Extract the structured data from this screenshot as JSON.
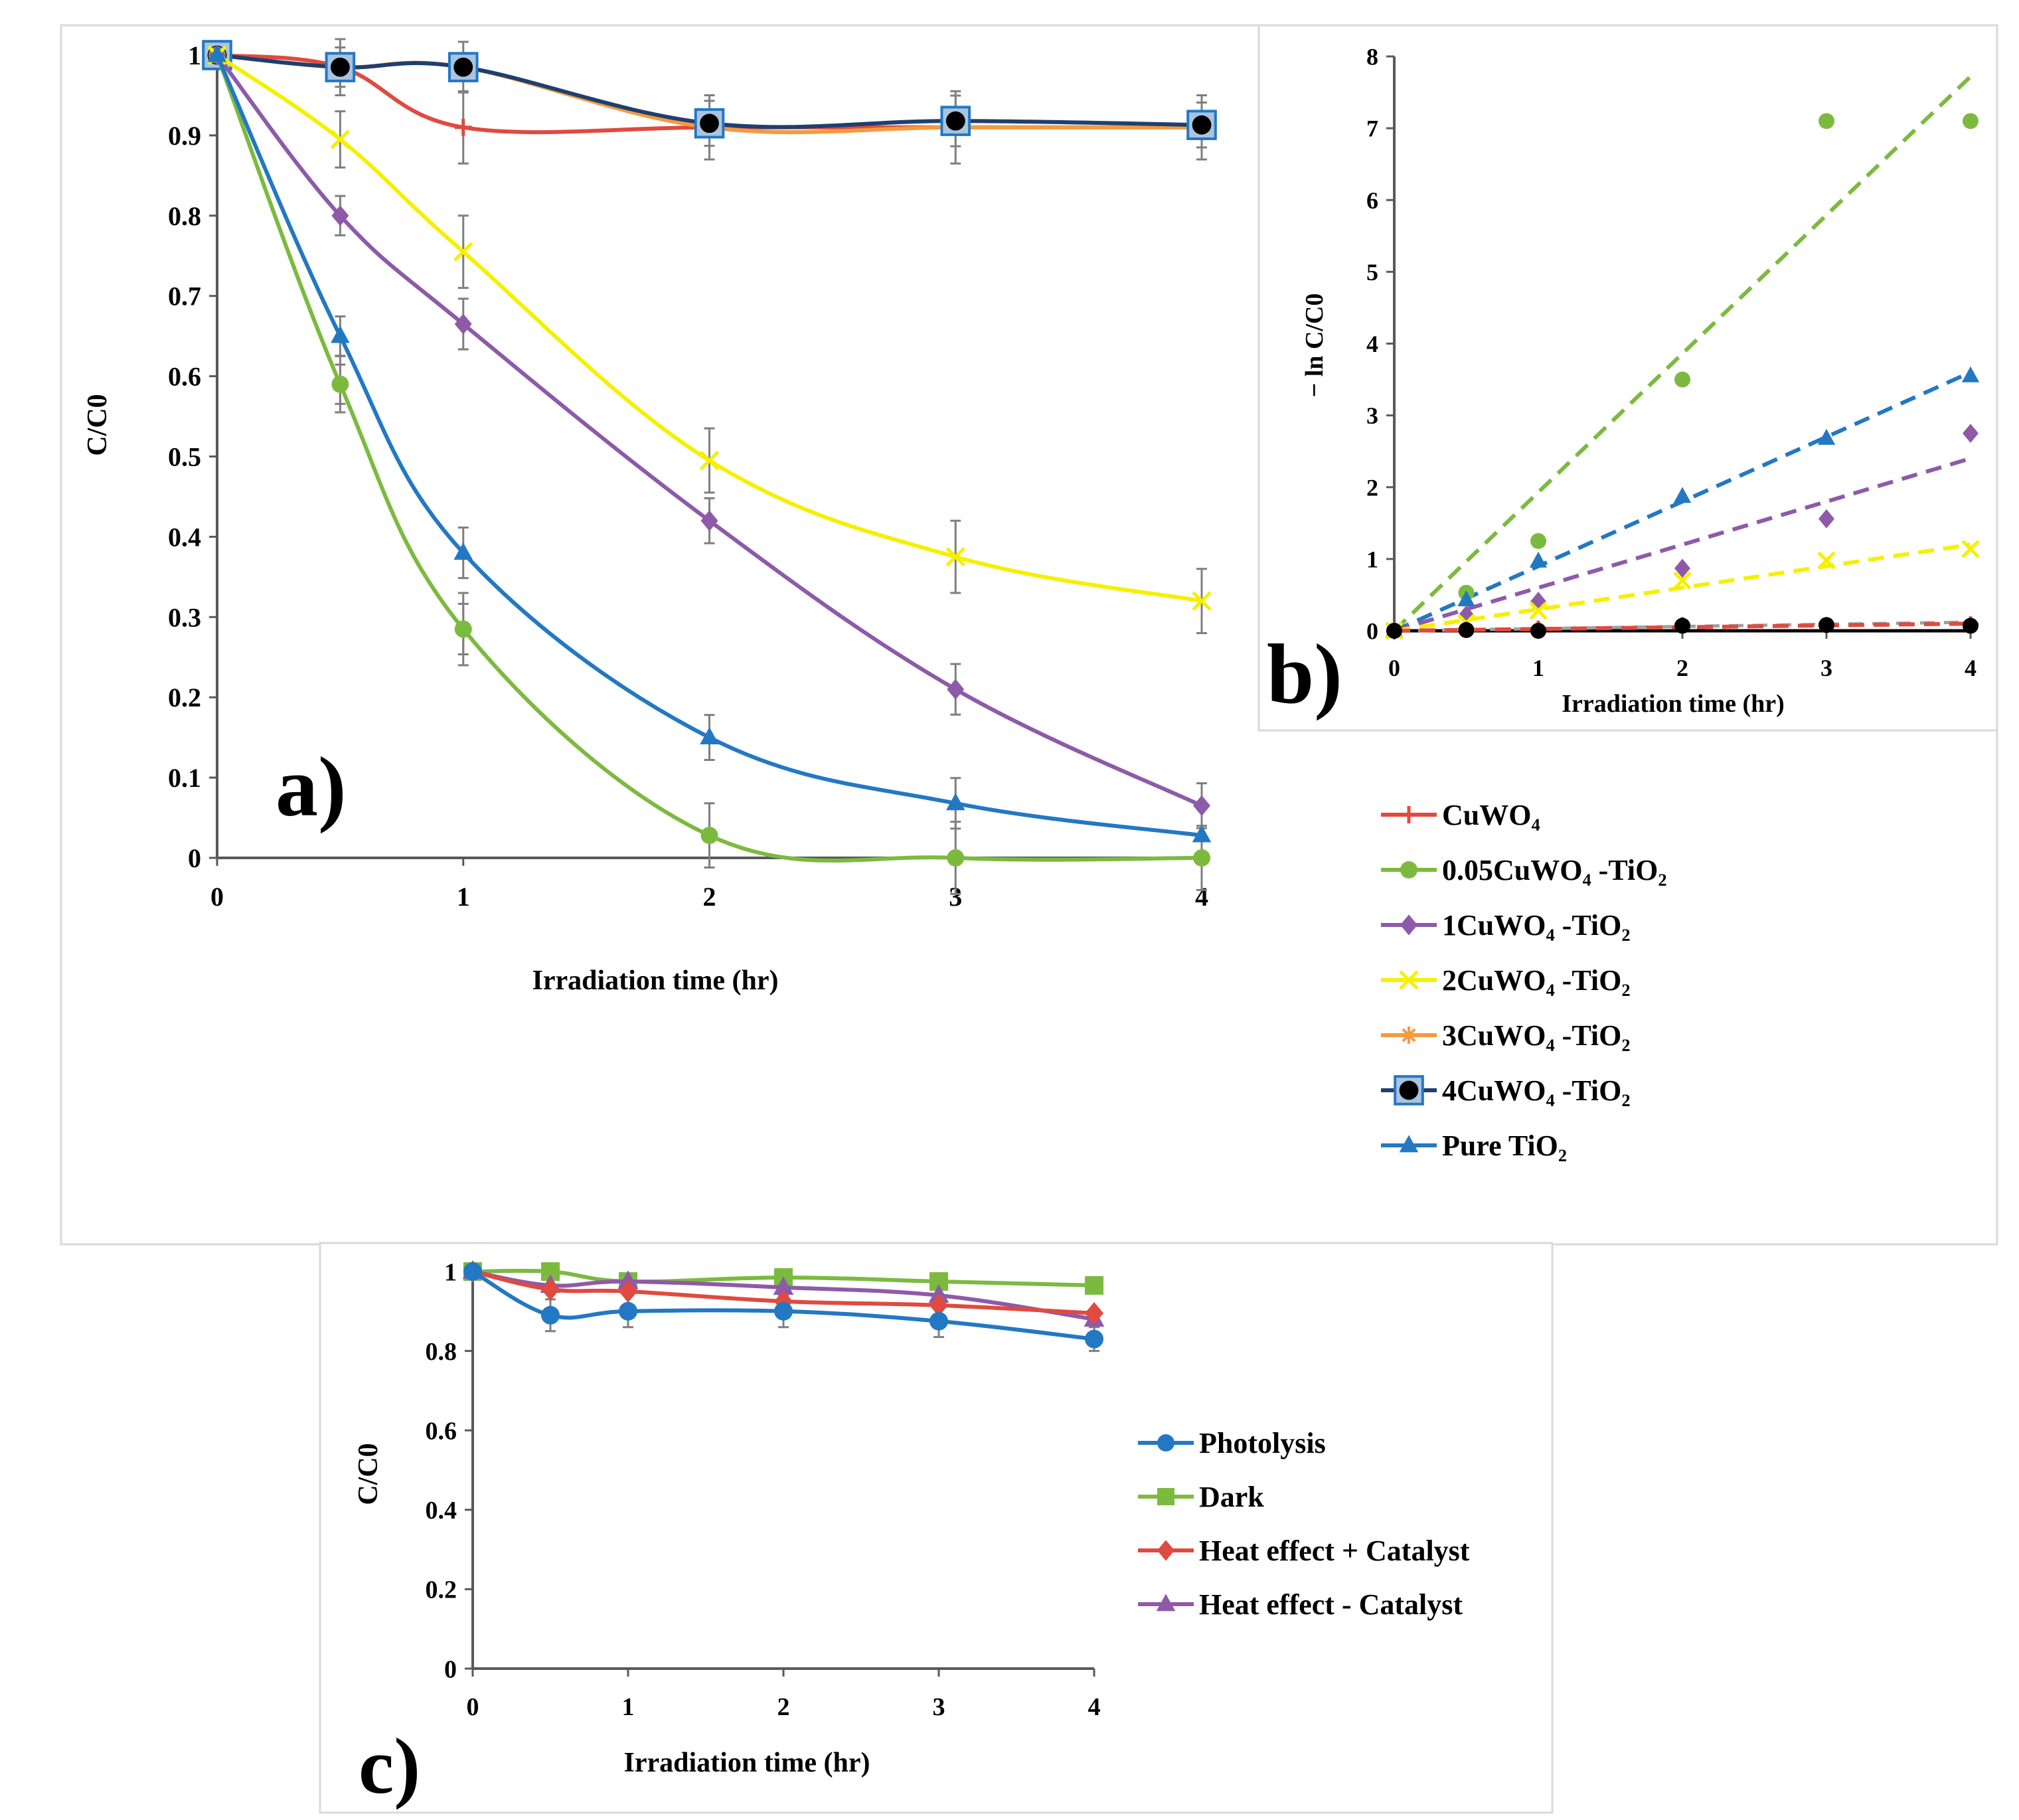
{
  "chart_data": [
    {
      "panel": "a)",
      "type": "line",
      "xlabel": "Irradiation  time (hr)",
      "ylabel": "C/C0",
      "xlim": [
        0,
        4
      ],
      "ylim": [
        0,
        1
      ],
      "xticks": [
        "0",
        "1",
        "2",
        "3",
        "4"
      ],
      "yticks": [
        "0",
        "0.1",
        "0.2",
        "0.3",
        "0.4",
        "0.5",
        "0.6",
        "0.7",
        "0.8",
        "0.9",
        "1"
      ],
      "x": [
        0,
        0.5,
        1,
        2,
        3,
        4
      ],
      "series": [
        {
          "name": "CuWO₄",
          "color": "#e04a3f",
          "marker": "plus",
          "values": [
            1.0,
            0.985,
            0.91,
            0.91,
            0.91,
            0.91
          ]
        },
        {
          "name": "0.05CuWO₄ -TiO₂",
          "color": "#7cba3f",
          "marker": "circle",
          "values": [
            1.0,
            0.59,
            0.285,
            0.028,
            0.0,
            0.0
          ]
        },
        {
          "name": "1CuWO₄ -TiO₂",
          "color": "#8e5aa8",
          "marker": "diamond",
          "values": [
            1.0,
            0.8,
            0.665,
            0.42,
            0.21,
            0.065
          ]
        },
        {
          "name": "2CuWO₄ -TiO₂",
          "color": "#f5f000",
          "marker": "x",
          "values": [
            1.0,
            0.895,
            0.755,
            0.495,
            0.375,
            0.32
          ]
        },
        {
          "name": "3CuWO₄ -TiO₂",
          "color": "#f59a3e",
          "marker": "star",
          "values": [
            1.0,
            0.985,
            0.985,
            0.91,
            0.91,
            0.91
          ]
        },
        {
          "name": "4CuWO₄ -TiO₂",
          "color": "#1f3f6e",
          "marker": "square-dot",
          "values": [
            1.0,
            0.985,
            0.985,
            0.915,
            0.918,
            0.913
          ]
        },
        {
          "name": "Pure TiO₂",
          "color": "#2378c3",
          "marker": "triangle",
          "values": [
            1.0,
            0.65,
            0.38,
            0.15,
            0.068,
            0.028
          ]
        }
      ],
      "error_bars": [
        0.01,
        0.035,
        0.045,
        0.04,
        0.045,
        0.04
      ]
    },
    {
      "panel": "b)",
      "type": "scatter",
      "xlabel": "Irradiation time (hr)",
      "ylabel": "− ln C/C0",
      "xlim": [
        0,
        4
      ],
      "ylim": [
        0,
        8
      ],
      "xticks": [
        "0",
        "1",
        "2",
        "3",
        "4"
      ],
      "yticks": [
        "0",
        "1",
        "2",
        "3",
        "4",
        "5",
        "6",
        "7",
        "8"
      ],
      "x": [
        0,
        0.5,
        1,
        2,
        3,
        4
      ],
      "series": [
        {
          "name": "0.05CuWO₄ -TiO₂",
          "color": "#7cba3f",
          "marker": "circle",
          "values": [
            0.0,
            0.53,
            1.25,
            3.5,
            7.1,
            7.1
          ],
          "fit_slope": 1.93
        },
        {
          "name": "Pure TiO₂",
          "color": "#2378c3",
          "marker": "triangle",
          "values": [
            0.0,
            0.43,
            0.97,
            1.87,
            2.68,
            3.55
          ],
          "fit_slope": 0.9
        },
        {
          "name": "1CuWO₄ -TiO₂",
          "color": "#8e5aa8",
          "marker": "diamond",
          "values": [
            0.0,
            0.22,
            0.41,
            0.87,
            1.56,
            2.75
          ],
          "fit_slope": 0.6
        },
        {
          "name": "2CuWO₄ -TiO₂",
          "color": "#f5f000",
          "marker": "x",
          "values": [
            0.0,
            0.11,
            0.28,
            0.7,
            0.98,
            1.14
          ],
          "fit_slope": 0.3
        },
        {
          "name": "CuWO₄",
          "color": "#e04a3f",
          "marker": "plus",
          "values": [
            0.0,
            0.015,
            0.03,
            0.08,
            0.08,
            0.09
          ],
          "fit_slope": 0.025
        },
        {
          "name": "4CuWO₄ -TiO₂",
          "color": "#000000",
          "marker": "circle-black",
          "values": [
            0.0,
            0.01,
            0.0,
            0.07,
            0.08,
            0.07
          ],
          "fit_slope": 0.0
        }
      ]
    },
    {
      "panel": "c)",
      "type": "line",
      "xlabel": "Irradiation  time (hr)",
      "ylabel": "C/C0",
      "xlim": [
        0,
        4
      ],
      "ylim": [
        0,
        1
      ],
      "xticks": [
        "0",
        "1",
        "2",
        "3",
        "4"
      ],
      "yticks": [
        "0",
        "0.2",
        "0.4",
        "0.6",
        "0.8",
        "1"
      ],
      "x": [
        0,
        0.5,
        1,
        2,
        3,
        4
      ],
      "series": [
        {
          "name": "Photolysis",
          "color": "#2378c3",
          "marker": "circle",
          "values": [
            1.0,
            0.89,
            0.9,
            0.9,
            0.875,
            0.83
          ],
          "errors": [
            0.01,
            0.04,
            0.04,
            0.04,
            0.04,
            0.03
          ]
        },
        {
          "name": "Dark",
          "color": "#7cba3f",
          "marker": "square",
          "values": [
            1.0,
            1.0,
            0.975,
            0.985,
            0.975,
            0.965
          ],
          "errors": [
            0.0,
            0.0,
            0.0,
            0.0,
            0.0,
            0.0
          ]
        },
        {
          "name": "Heat effect + Catalyst",
          "color": "#e04a3f",
          "marker": "diamond",
          "values": [
            1.0,
            0.955,
            0.95,
            0.925,
            0.915,
            0.895
          ],
          "errors": [
            0.0,
            0.0,
            0.0,
            0.0,
            0.0,
            0.0
          ]
        },
        {
          "name": "Heat effect - Catalyst",
          "color": "#8e5aa8",
          "marker": "triangle",
          "values": [
            1.0,
            0.965,
            0.975,
            0.96,
            0.94,
            0.88
          ],
          "errors": [
            0.0,
            0.0,
            0.0,
            0.0,
            0.0,
            0.0
          ]
        }
      ]
    }
  ],
  "legend_main": [
    {
      "label": "CuWO₄",
      "color": "#e04a3f",
      "marker": "plus"
    },
    {
      "label": "0.05CuWO₄ -TiO₂",
      "color": "#7cba3f",
      "marker": "circle"
    },
    {
      "label": "1CuWO₄ -TiO₂",
      "color": "#8e5aa8",
      "marker": "diamond"
    },
    {
      "label": "2CuWO₄ -TiO₂",
      "color": "#f5f000",
      "marker": "x"
    },
    {
      "label": "3CuWO₄ -TiO₂",
      "color": "#f59a3e",
      "marker": "star"
    },
    {
      "label": "4CuWO₄ -TiO₂",
      "color": "#1f3f6e",
      "marker": "square-dot"
    },
    {
      "label": "Pure TiO₂",
      "color": "#2378c3",
      "marker": "triangle"
    }
  ],
  "legend_c": [
    {
      "label": "Photolysis",
      "color": "#2378c3",
      "marker": "circle"
    },
    {
      "label": "Dark",
      "color": "#7cba3f",
      "marker": "square"
    },
    {
      "label": "Heat effect + Catalyst",
      "color": "#e04a3f",
      "marker": "diamond"
    },
    {
      "label": "Heat effect - Catalyst",
      "color": "#8e5aa8",
      "marker": "triangle"
    }
  ]
}
